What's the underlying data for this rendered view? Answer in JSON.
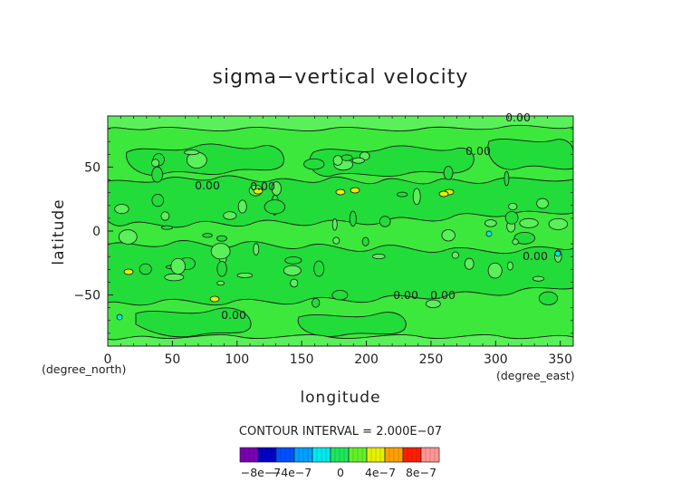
{
  "chart_data": {
    "type": "heatmap",
    "title": "sigma−vertical velocity",
    "xlabel": "longitude",
    "ylabel": "latitude",
    "x_unit": "(degree_east)",
    "y_unit": "(degree_north)",
    "xlim": [
      0,
      360
    ],
    "ylim": [
      -90,
      90
    ],
    "x_ticks": [
      "0",
      "50",
      "100",
      "150",
      "200",
      "250",
      "300",
      "350"
    ],
    "y_ticks": [
      "50",
      "0",
      "−50"
    ],
    "contour_interval": "CONTOUR INTERVAL = 2.000E−07",
    "contour_labels": [
      "0.00",
      "0.00",
      "0.00",
      "0.00",
      "0.00",
      "0.00",
      "0.00",
      "0.00"
    ],
    "colorbar": {
      "colors": [
        "#7a00b4",
        "#0000c8",
        "#0050ff",
        "#00a0ff",
        "#00eaea",
        "#1ee65a",
        "#64f028",
        "#e6f000",
        "#ffa000",
        "#ff1e00",
        "#ff9696"
      ],
      "tick_labels": [
        "−8e−7",
        "−4e−7",
        "0",
        "4e−7",
        "8e−7"
      ]
    },
    "grid": false
  }
}
